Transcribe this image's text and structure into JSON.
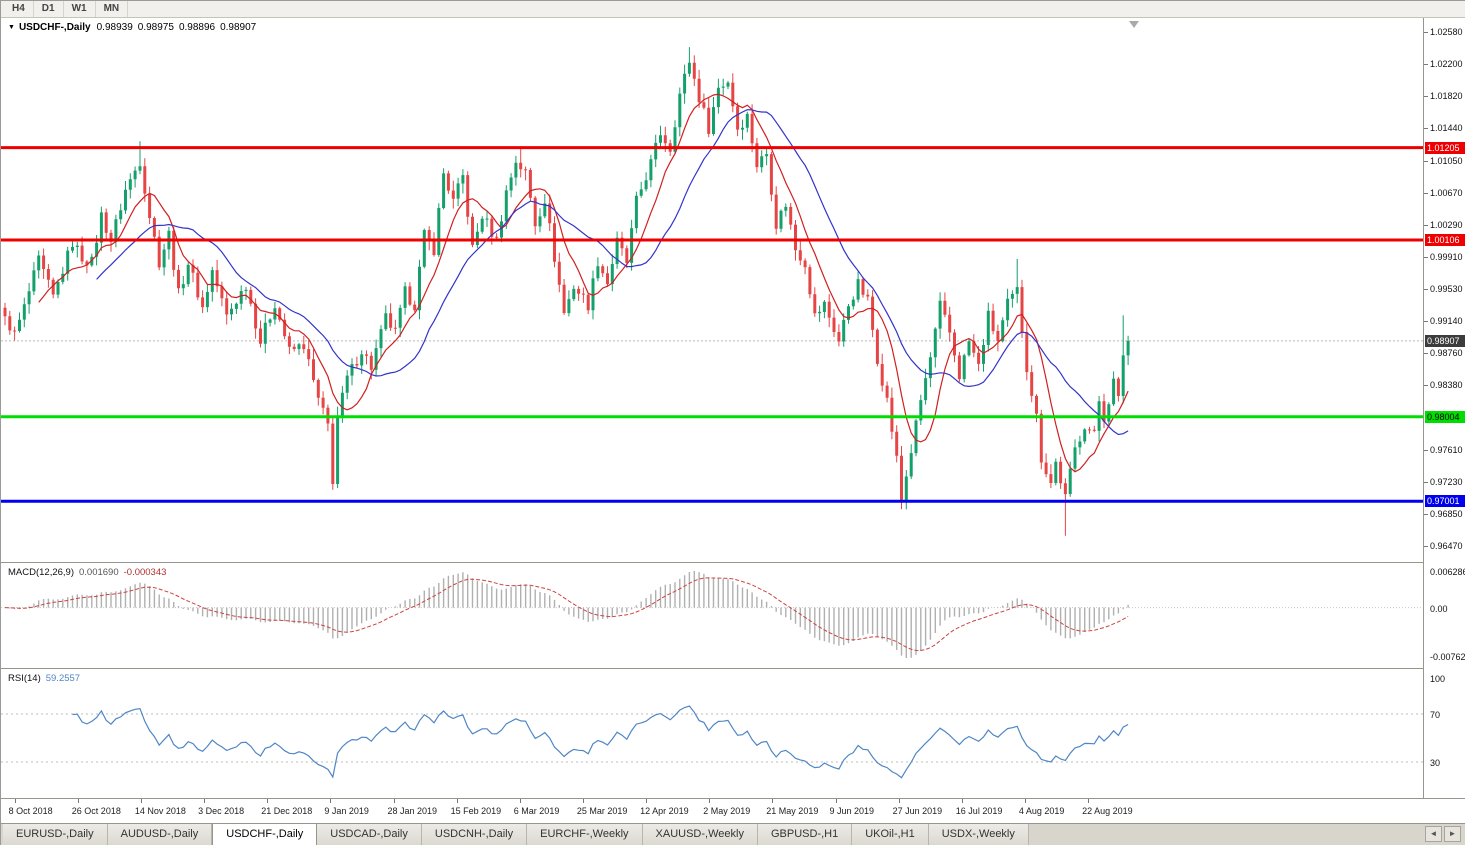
{
  "toolbar": {
    "timeframes": [
      "H4",
      "D1",
      "W1",
      "MN"
    ]
  },
  "chart": {
    "collapse_icon": "▼",
    "symbol_title": "USDCHF-,Daily",
    "ohlc": {
      "open": "0.98939",
      "high": "0.98975",
      "low": "0.98896",
      "close": "0.98907"
    }
  },
  "price_axis": {
    "labels": [
      "1.02580",
      "1.02200",
      "1.01820",
      "1.01440",
      "1.01050",
      "1.00670",
      "1.00290",
      "0.99910",
      "0.99530",
      "0.99140",
      "0.98760",
      "0.98380",
      "0.97610",
      "0.97230",
      "0.96850",
      "0.96470"
    ]
  },
  "levels": {
    "hlines": [
      {
        "price": 1.01205,
        "label": "1.01205",
        "color": "#ee0000",
        "text": "#ffffff"
      },
      {
        "price": 1.00106,
        "label": "1.00106",
        "color": "#ee0000",
        "text": "#ffffff"
      },
      {
        "price": 0.98004,
        "label": "0.98004",
        "color": "#00dd00",
        "text": "#000000"
      },
      {
        "price": 0.97001,
        "label": "0.97001",
        "color": "#0000ee",
        "text": "#ffffff"
      }
    ],
    "bid_line": {
      "price": 0.98907,
      "label": "0.98907",
      "color": "#b9b9b9",
      "badge": "#3c3c3c",
      "text": "#ffffff"
    }
  },
  "chart_data": {
    "type": "candlestick",
    "symbol": "USDCHF",
    "timeframe": "Daily",
    "num_candles": 234,
    "price_min": 0.96278,
    "price_max": 1.02746,
    "up_color": "#14a06a",
    "down_color": "#e64545",
    "ma": [
      {
        "name": "MA fast",
        "period": 8,
        "color": "#d02020"
      },
      {
        "name": "MA slow",
        "period": 20,
        "color": "#3333cc"
      }
    ],
    "label_first_index": 2,
    "label_index_step": 13.1,
    "x_labels": [
      "8 Oct 2018",
      "26 Oct 2018",
      "14 Nov 2018",
      "3 Dec 2018",
      "21 Dec 2018",
      "9 Jan 2019",
      "28 Jan 2019",
      "15 Feb 2019",
      "6 Mar 2019",
      "25 Mar 2019",
      "12 Apr 2019",
      "2 May 2019",
      "21 May 2019",
      "9 Jun 2019",
      "27 Jun 2019",
      "16 Jul 2019",
      "4 Aug 2019",
      "22 Aug 2019"
    ],
    "close_anchors": [
      [
        0,
        0.992
      ],
      [
        2,
        0.9898
      ],
      [
        4,
        0.993
      ],
      [
        7,
        0.9986
      ],
      [
        10,
        0.9942
      ],
      [
        12,
        0.9975
      ],
      [
        14,
        1.0008
      ],
      [
        16,
        0.999
      ],
      [
        18,
        0.9984
      ],
      [
        20,
        1.004
      ],
      [
        22,
        1.001
      ],
      [
        25,
        1.007
      ],
      [
        28,
        1.0105
      ],
      [
        30,
        1.004
      ],
      [
        32,
        0.9985
      ],
      [
        34,
        1.0018
      ],
      [
        36,
        0.9946
      ],
      [
        38,
        0.9984
      ],
      [
        41,
        0.993
      ],
      [
        43,
        0.9974
      ],
      [
        46,
        0.992
      ],
      [
        50,
        0.9958
      ],
      [
        53,
        0.989
      ],
      [
        56,
        0.9936
      ],
      [
        59,
        0.9878
      ],
      [
        62,
        0.9886
      ],
      [
        65,
        0.982
      ],
      [
        67,
        0.979
      ],
      [
        68,
        0.9726
      ],
      [
        69,
        0.98
      ],
      [
        71,
        0.9846
      ],
      [
        74,
        0.988
      ],
      [
        76,
        0.986
      ],
      [
        79,
        0.9918
      ],
      [
        81,
        0.99
      ],
      [
        83,
        0.9948
      ],
      [
        85,
        0.9934
      ],
      [
        87,
        1.0016
      ],
      [
        89,
        1.0
      ],
      [
        91,
        1.009
      ],
      [
        93,
        1.0056
      ],
      [
        95,
        1.0086
      ],
      [
        97,
        1.0
      ],
      [
        99,
        1.004
      ],
      [
        102,
        1.001
      ],
      [
        104,
        1.0068
      ],
      [
        106,
        1.0105
      ],
      [
        108,
        1.009
      ],
      [
        110,
        1.003
      ],
      [
        112,
        1.006
      ],
      [
        114,
        0.999
      ],
      [
        116,
        0.9924
      ],
      [
        118,
        0.9956
      ],
      [
        121,
        0.9934
      ],
      [
        123,
        0.9986
      ],
      [
        125,
        0.996
      ],
      [
        127,
        1.0008
      ],
      [
        129,
        0.9984
      ],
      [
        131,
        1.0056
      ],
      [
        134,
        1.0102
      ],
      [
        136,
        1.0138
      ],
      [
        138,
        1.012
      ],
      [
        140,
        1.0184
      ],
      [
        142,
        1.0224
      ],
      [
        144,
        1.018
      ],
      [
        146,
        1.0144
      ],
      [
        148,
        1.0192
      ],
      [
        150,
        1.02
      ],
      [
        152,
        1.0144
      ],
      [
        154,
        1.0158
      ],
      [
        156,
        1.01
      ],
      [
        158,
        1.0114
      ],
      [
        160,
        1.003
      ],
      [
        162,
        1.0054
      ],
      [
        164,
        1.0
      ],
      [
        166,
        0.9984
      ],
      [
        168,
        0.992
      ],
      [
        170,
        0.9934
      ],
      [
        173,
        0.989
      ],
      [
        175,
        0.9934
      ],
      [
        177,
        0.9958
      ],
      [
        179,
        0.9938
      ],
      [
        181,
        0.987
      ],
      [
        183,
        0.982
      ],
      [
        185,
        0.975
      ],
      [
        186,
        0.9702
      ],
      [
        188,
        0.976
      ],
      [
        190,
        0.982
      ],
      [
        192,
        0.987
      ],
      [
        194,
        0.9932
      ],
      [
        196,
        0.99
      ],
      [
        198,
        0.985
      ],
      [
        200,
        0.989
      ],
      [
        202,
        0.986
      ],
      [
        204,
        0.992
      ],
      [
        206,
        0.989
      ],
      [
        208,
        0.9934
      ],
      [
        210,
        0.995
      ],
      [
        212,
        0.986
      ],
      [
        214,
        0.98
      ],
      [
        215,
        0.9752
      ],
      [
        217,
        0.9722
      ],
      [
        218,
        0.9746
      ],
      [
        220,
        0.9704
      ],
      [
        222,
        0.9762
      ],
      [
        224,
        0.9792
      ],
      [
        226,
        0.9778
      ],
      [
        227,
        0.982
      ],
      [
        228,
        0.98
      ],
      [
        230,
        0.9842
      ],
      [
        231,
        0.982
      ],
      [
        232,
        0.9876
      ],
      [
        233,
        0.98907
      ]
    ],
    "wick_overrides": {
      "28": {
        "h": 1.0128
      },
      "68": {
        "l": 0.9717
      },
      "107": {
        "h": 1.0122
      },
      "142": {
        "h": 1.024
      },
      "186": {
        "l": 0.9693
      },
      "210": {
        "h": 0.9988
      },
      "220": {
        "l": 0.9659
      },
      "232": {
        "h": 0.9921
      }
    }
  },
  "macd": {
    "label": "MACD(12,26,9)",
    "value_main": "0.001690",
    "value_signal": "-0.000343",
    "axis_max": "0.006286",
    "axis_zero": "0.00",
    "axis_min": "-0.00762",
    "fast": 12,
    "slow": 26,
    "signal": 9,
    "hist_color": "#b0b0b0",
    "signal_color": "#cc4444"
  },
  "rsi": {
    "label": "RSI(14)",
    "value": "59.2557",
    "period": 14,
    "levels": [
      100,
      70,
      30
    ],
    "line_color": "#4f86c6"
  },
  "tabs": {
    "items": [
      "EURUSD-,Daily",
      "AUDUSD-,Daily",
      "USDCHF-,Daily",
      "USDCAD-,Daily",
      "USDCNH-,Daily",
      "EURCHF-,Weekly",
      "XAUUSD-,Weekly",
      "GBPUSD-,H1",
      "UKOil-,H1",
      "USDX-,Weekly"
    ],
    "active_index": 2,
    "left_arrow": "◄",
    "right_arrow": "►"
  }
}
